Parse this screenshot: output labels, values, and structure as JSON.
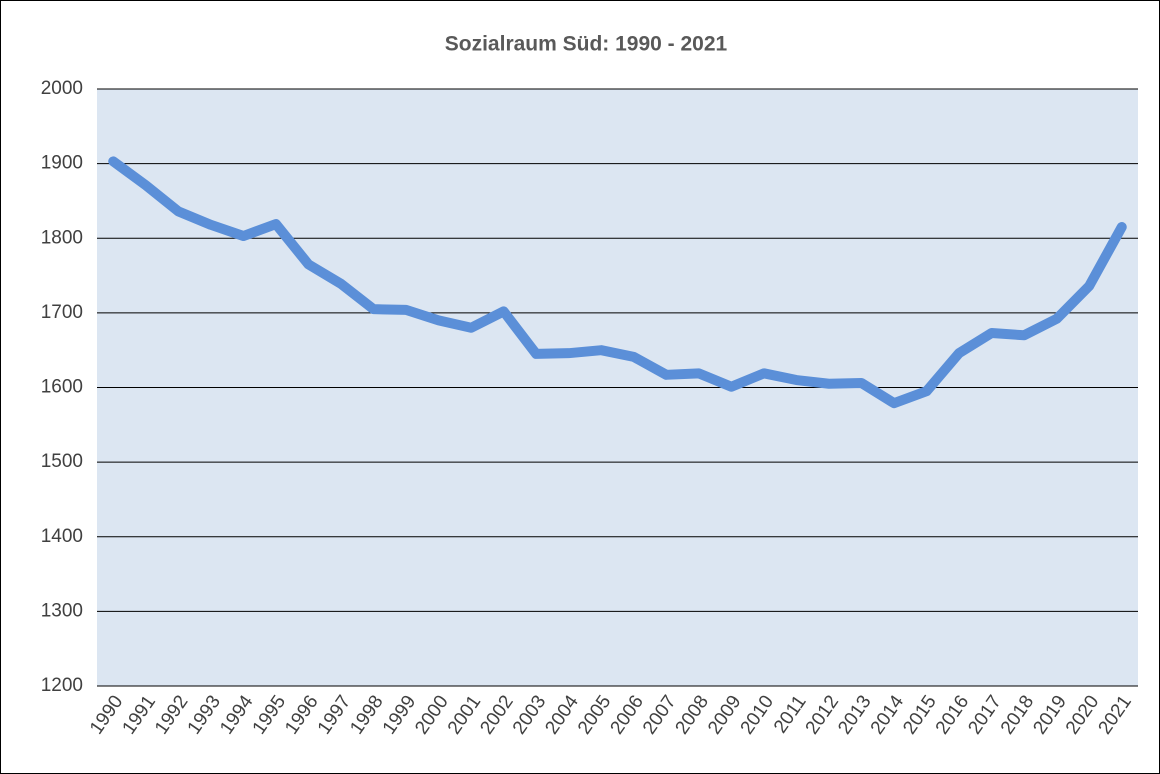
{
  "chart_data": {
    "type": "line",
    "title": "Sozialraum  Süd: 1990 - 2021",
    "categories": [
      "1990",
      "1991",
      "1992",
      "1993",
      "1994",
      "1995",
      "1996",
      "1997",
      "1998",
      "1999",
      "2000",
      "2001",
      "2002",
      "2003",
      "2004",
      "2005",
      "2006",
      "2007",
      "2008",
      "2009",
      "2010",
      "2011",
      "2012",
      "2013",
      "2014",
      "2015",
      "2016",
      "2017",
      "2018",
      "2019",
      "2020",
      "2021"
    ],
    "values": [
      1903,
      1871,
      1836,
      1818,
      1803,
      1819,
      1765,
      1739,
      1705,
      1704,
      1690,
      1680,
      1702,
      1645,
      1646,
      1650,
      1641,
      1617,
      1619,
      1601,
      1619,
      1610,
      1605,
      1606,
      1579,
      1595,
      1646,
      1673,
      1670,
      1692,
      1736,
      1815
    ],
    "color": "#5b8fd8",
    "ylim": [
      1200,
      2000
    ],
    "yticks": [
      1200,
      1300,
      1400,
      1500,
      1600,
      1700,
      1800,
      1900,
      2000
    ],
    "grid": true
  }
}
